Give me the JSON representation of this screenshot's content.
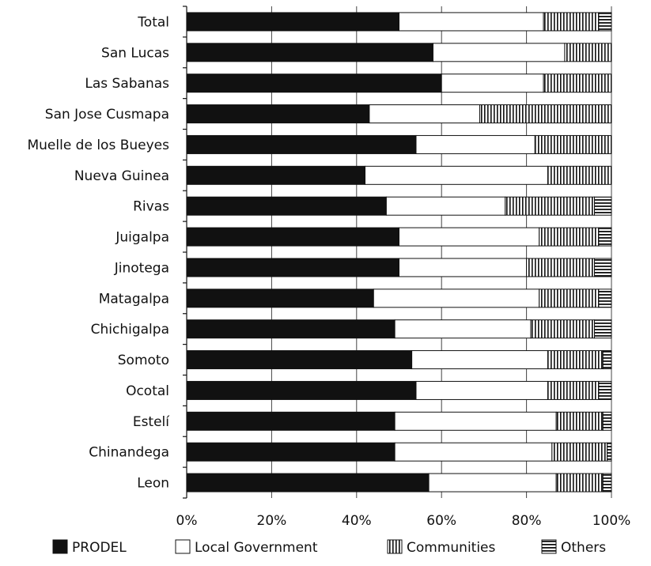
{
  "chart_data": {
    "type": "bar",
    "orientation": "horizontal",
    "stacked": true,
    "percent_stacked": true,
    "categories": [
      "Total",
      "San Lucas",
      "Las Sabanas",
      "San Jose Cusmapa",
      "Muelle de los Bueyes",
      "Nueva Guinea",
      "Rivas",
      "Juigalpa",
      "Jinotega",
      "Matagalpa",
      "Chichigalpa",
      "Somoto",
      "Ocotal",
      "Estelí",
      "Chinandega",
      "Leon"
    ],
    "series": [
      {
        "name": "PRODEL",
        "values": [
          50,
          58,
          60,
          43,
          54,
          42,
          47,
          50,
          50,
          44,
          49,
          53,
          54,
          49,
          49,
          57
        ],
        "pattern": "solid"
      },
      {
        "name": "Local Government",
        "values": [
          34,
          31,
          24,
          26,
          28,
          43,
          28,
          33,
          30,
          39,
          32,
          32,
          31,
          38,
          37,
          30
        ],
        "pattern": "empty"
      },
      {
        "name": "Communities",
        "values": [
          13,
          11,
          16,
          31,
          18,
          15,
          21,
          14,
          16,
          14,
          15,
          13,
          12,
          11,
          13,
          11
        ],
        "pattern": "vertical"
      },
      {
        "name": "Others",
        "values": [
          3,
          0,
          0,
          0,
          0,
          0,
          4,
          3,
          4,
          3,
          4,
          2,
          3,
          2,
          1,
          2
        ],
        "pattern": "horizontal"
      }
    ],
    "x_ticks": [
      "0%",
      "20%",
      "40%",
      "60%",
      "80%",
      "100%"
    ],
    "xlim": [
      0,
      100
    ],
    "grid": "vertical",
    "legend_position": "bottom"
  }
}
